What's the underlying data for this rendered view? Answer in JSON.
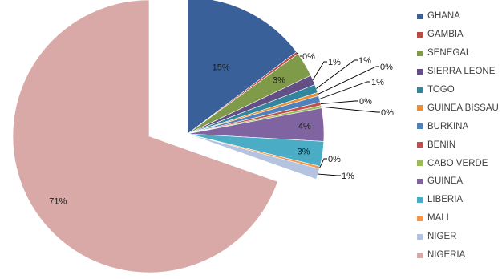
{
  "chart_data": {
    "type": "pie",
    "exploded": true,
    "legend_position": "right",
    "slices": [
      {
        "label": "GHANA",
        "value": 15,
        "value_label": "15%",
        "color": "#3a6099"
      },
      {
        "label": "GAMBIA",
        "value": 0.3,
        "value_label": "0%",
        "color": "#b94a48"
      },
      {
        "label": "SENEGAL",
        "value": 3,
        "value_label": "3%",
        "color": "#7f9a48"
      },
      {
        "label": "SIERRA LEONE",
        "value": 1.2,
        "value_label": "1%",
        "color": "#634f86"
      },
      {
        "label": "TOGO",
        "value": 1.0,
        "value_label": "1%",
        "color": "#31859c"
      },
      {
        "label": "GUINEA BISSAU",
        "value": 0.4,
        "value_label": "0%",
        "color": "#e6903a"
      },
      {
        "label": "BURKINA",
        "value": 0.8,
        "value_label": "1%",
        "color": "#4f81bd"
      },
      {
        "label": "BENIN",
        "value": 0.4,
        "value_label": "0%",
        "color": "#c0504d"
      },
      {
        "label": "CABO VERDE",
        "value": 0.3,
        "value_label": "0%",
        "color": "#9bbb59"
      },
      {
        "label": "GUINEA",
        "value": 4,
        "value_label": "4%",
        "color": "#8064a2"
      },
      {
        "label": "LIBERIA",
        "value": 3,
        "value_label": "3%",
        "color": "#4bacc6"
      },
      {
        "label": "MALI",
        "value": 0.3,
        "value_label": "0%",
        "color": "#f79646"
      },
      {
        "label": "NIGER",
        "value": 1.3,
        "value_label": "1%",
        "color": "#b3c3e0"
      },
      {
        "label": "NIGERIA",
        "value": 71,
        "value_label": "71%",
        "color": "#d9a9a8"
      }
    ]
  }
}
